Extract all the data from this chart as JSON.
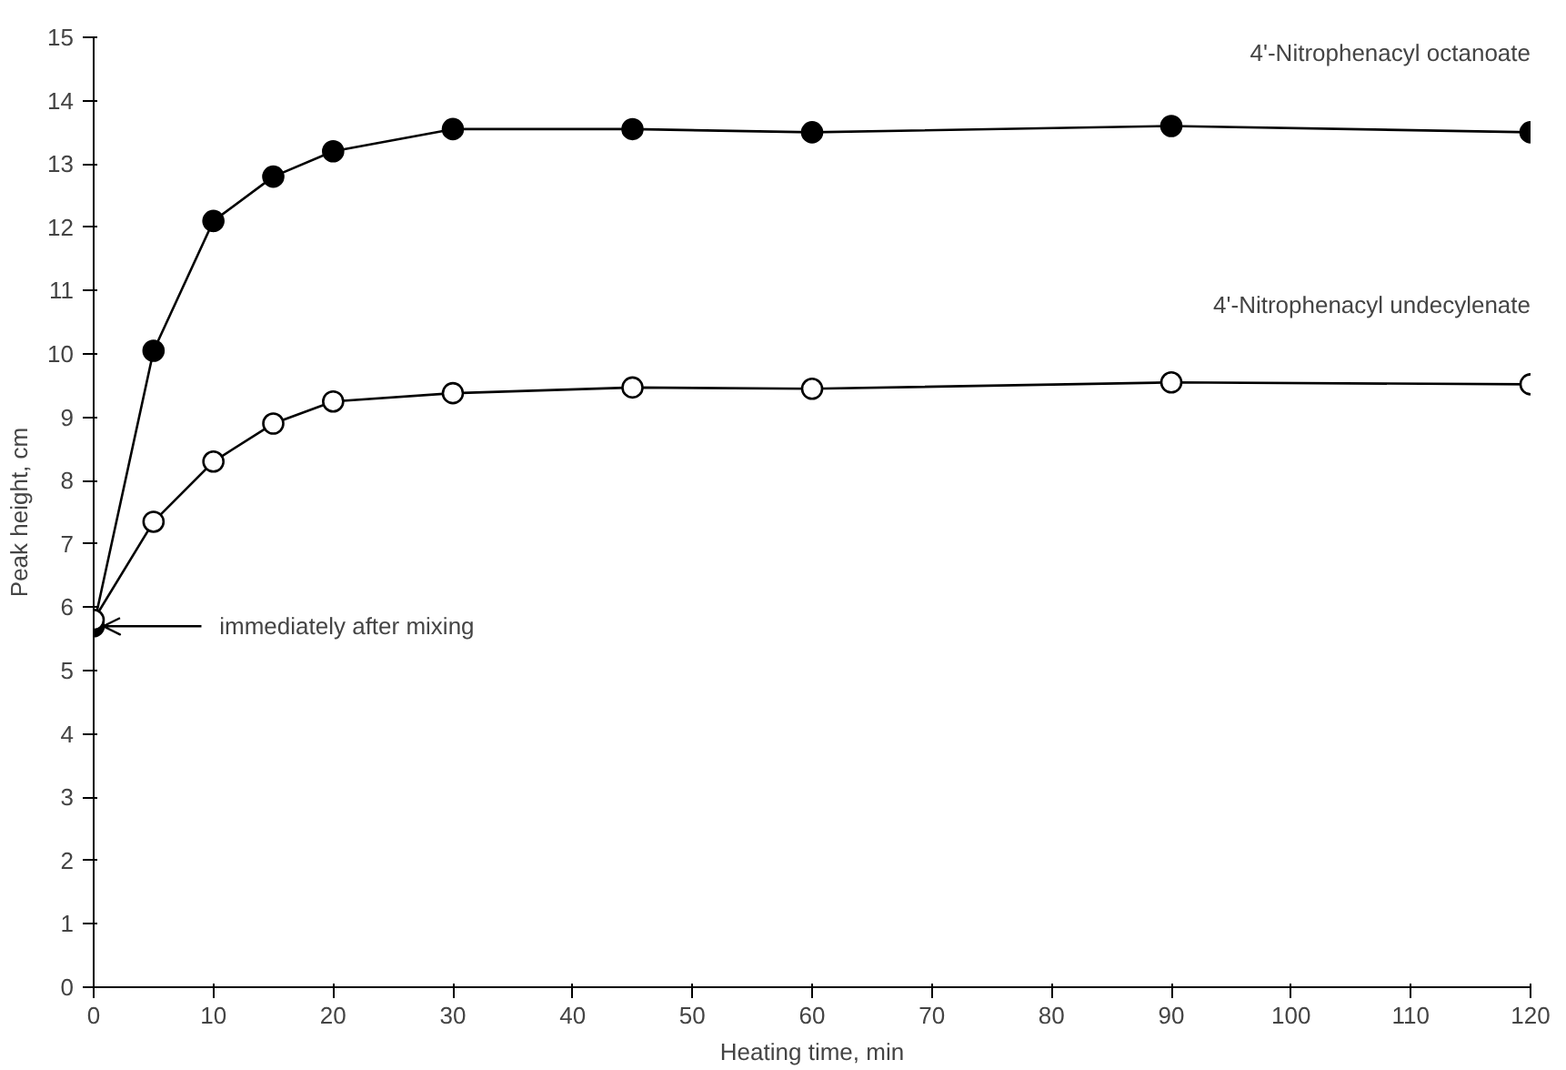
{
  "chart_data": {
    "type": "line",
    "xlabel": "Heating time, min",
    "ylabel": "Peak height, cm",
    "x": [
      0,
      5,
      10,
      15,
      20,
      30,
      45,
      60,
      90,
      120
    ],
    "series": [
      {
        "name": "4'-Nitrophenacyl octanoate",
        "color": "#000000",
        "values": [
          5.7,
          10.05,
          12.1,
          12.8,
          13.2,
          13.55,
          13.55,
          13.5,
          13.6,
          13.5
        ]
      },
      {
        "name": "4'-Nitrophenacyl undecylenate",
        "color": "#000000",
        "values": [
          5.8,
          7.35,
          8.3,
          8.9,
          9.25,
          9.38,
          9.47,
          9.45,
          9.55,
          9.52
        ]
      }
    ],
    "xlim": [
      0,
      120
    ],
    "ylim": [
      0,
      15
    ],
    "xticks": [
      0,
      10,
      20,
      30,
      40,
      50,
      60,
      70,
      80,
      90,
      100,
      110,
      120
    ],
    "yticks": [
      0,
      1,
      2,
      3,
      4,
      5,
      6,
      7,
      8,
      9,
      10,
      11,
      12,
      13,
      14,
      15
    ],
    "annotations": [
      "immediately after mixing"
    ],
    "marker": "circle",
    "line_style": "solid",
    "grid": false
  }
}
